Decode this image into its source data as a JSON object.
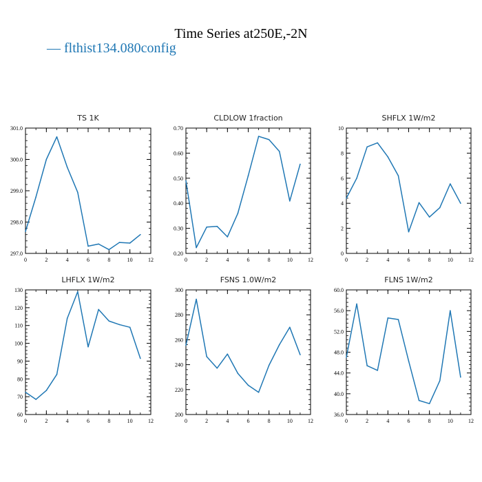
{
  "figure": {
    "title": "Time Series at250E,-2N",
    "legend_label": "— flthist134.080config",
    "series_color": "#1f77b4"
  },
  "chart_data": [
    {
      "type": "line",
      "title": "TS   1K",
      "x": [
        0,
        1,
        2,
        3,
        4,
        5,
        6,
        7,
        8,
        9,
        10,
        11
      ],
      "series": [
        {
          "name": "flthist134.080config",
          "values": [
            297.7,
            298.8,
            300.0,
            300.72,
            299.75,
            298.95,
            297.23,
            297.3,
            297.12,
            297.35,
            297.33,
            297.6
          ]
        }
      ],
      "xlim": [
        0,
        12
      ],
      "ylim": [
        297.0,
        301.0
      ],
      "xticks": [
        0,
        2,
        4,
        6,
        8,
        10,
        12
      ],
      "xtick_labels": [
        "0",
        "2",
        "4",
        "6",
        "8",
        "10",
        "12"
      ],
      "yticks": [
        297.0,
        298.0,
        299.0,
        300.0,
        301.0
      ],
      "ytick_labels": [
        "297.0",
        "298.0",
        "299.0",
        "300.0",
        "301.0"
      ]
    },
    {
      "type": "line",
      "title": "CLDLOW   1fraction",
      "x": [
        0,
        1,
        2,
        3,
        4,
        5,
        6,
        7,
        8,
        9,
        10,
        11
      ],
      "series": [
        {
          "name": "flthist134.080config",
          "values": [
            0.49,
            0.223,
            0.305,
            0.308,
            0.266,
            0.36,
            0.51,
            0.667,
            0.654,
            0.607,
            0.409,
            0.556
          ]
        }
      ],
      "xlim": [
        0,
        12
      ],
      "ylim": [
        0.2,
        0.7
      ],
      "xticks": [
        0,
        2,
        4,
        6,
        8,
        10,
        12
      ],
      "xtick_labels": [
        "0",
        "2",
        "4",
        "6",
        "8",
        "10",
        "12"
      ],
      "yticks": [
        0.2,
        0.3,
        0.4,
        0.5,
        0.6,
        0.7
      ],
      "ytick_labels": [
        "0.20",
        "0.30",
        "0.40",
        "0.50",
        "0.60",
        "0.70"
      ]
    },
    {
      "type": "line",
      "title": "SHFLX   1W/m2",
      "x": [
        0,
        1,
        2,
        3,
        4,
        5,
        6,
        7,
        8,
        9,
        10,
        11
      ],
      "series": [
        {
          "name": "flthist134.080config",
          "values": [
            4.4,
            6.0,
            8.5,
            8.82,
            7.7,
            6.2,
            1.72,
            4.05,
            2.9,
            3.65,
            5.55,
            4.0
          ]
        }
      ],
      "xlim": [
        0,
        12
      ],
      "ylim": [
        0,
        10
      ],
      "xticks": [
        0,
        2,
        4,
        6,
        8,
        10,
        12
      ],
      "xtick_labels": [
        "0",
        "2",
        "4",
        "6",
        "8",
        "10",
        "12"
      ],
      "yticks": [
        0,
        2,
        4,
        6,
        8,
        10
      ],
      "ytick_labels": [
        "0",
        "2",
        "4",
        "6",
        "8",
        "10"
      ]
    },
    {
      "type": "line",
      "title": "LHFLX   1W/m2",
      "x": [
        0,
        1,
        2,
        3,
        4,
        5,
        6,
        7,
        8,
        9,
        10,
        11
      ],
      "series": [
        {
          "name": "flthist134.080config",
          "values": [
            72.5,
            68.5,
            73.5,
            82.5,
            114,
            129,
            98,
            119,
            112.5,
            110.5,
            109,
            91.5
          ]
        }
      ],
      "xlim": [
        0,
        12
      ],
      "ylim": [
        60,
        130
      ],
      "xticks": [
        0,
        2,
        4,
        6,
        8,
        10,
        12
      ],
      "xtick_labels": [
        "0",
        "2",
        "4",
        "6",
        "8",
        "10",
        "12"
      ],
      "yticks": [
        60,
        70,
        80,
        90,
        100,
        110,
        120,
        130
      ],
      "ytick_labels": [
        "60",
        "70",
        "80",
        "90",
        "100",
        "110",
        "120",
        "130"
      ]
    },
    {
      "type": "line",
      "title": "FSNS   1.0W/m2",
      "x": [
        0,
        1,
        2,
        3,
        4,
        5,
        6,
        7,
        8,
        9,
        10,
        11
      ],
      "series": [
        {
          "name": "flthist134.080config",
          "values": [
            255.5,
            292.5,
            246.5,
            237.2,
            248.5,
            233.0,
            223.5,
            217.8,
            239.5,
            256.0,
            270.0,
            248.0
          ]
        }
      ],
      "xlim": [
        0,
        12
      ],
      "ylim": [
        200,
        300
      ],
      "xticks": [
        0,
        2,
        4,
        6,
        8,
        10,
        12
      ],
      "xtick_labels": [
        "0",
        "2",
        "4",
        "6",
        "8",
        "10",
        "12"
      ],
      "yticks": [
        200,
        220,
        240,
        260,
        280,
        300
      ],
      "ytick_labels": [
        "200",
        "220",
        "240",
        "260",
        "280",
        "300"
      ]
    },
    {
      "type": "line",
      "title": "FLNS   1W/m2",
      "x": [
        0,
        1,
        2,
        3,
        4,
        5,
        6,
        7,
        8,
        9,
        10,
        11
      ],
      "series": [
        {
          "name": "flthist134.080config",
          "values": [
            47.0,
            57.3,
            45.4,
            44.5,
            54.6,
            54.3,
            46.3,
            38.7,
            38.1,
            42.5,
            56.0,
            43.2
          ]
        }
      ],
      "xlim": [
        0,
        12
      ],
      "ylim": [
        36,
        60
      ],
      "xticks": [
        0,
        2,
        4,
        6,
        8,
        10,
        12
      ],
      "xtick_labels": [
        "0",
        "2",
        "4",
        "6",
        "8",
        "10",
        "12"
      ],
      "yticks": [
        36,
        40,
        44,
        48,
        52,
        56,
        60
      ],
      "ytick_labels": [
        "36.0",
        "40.0",
        "44.0",
        "48.0",
        "52.0",
        "56.0",
        "60.0"
      ]
    }
  ]
}
